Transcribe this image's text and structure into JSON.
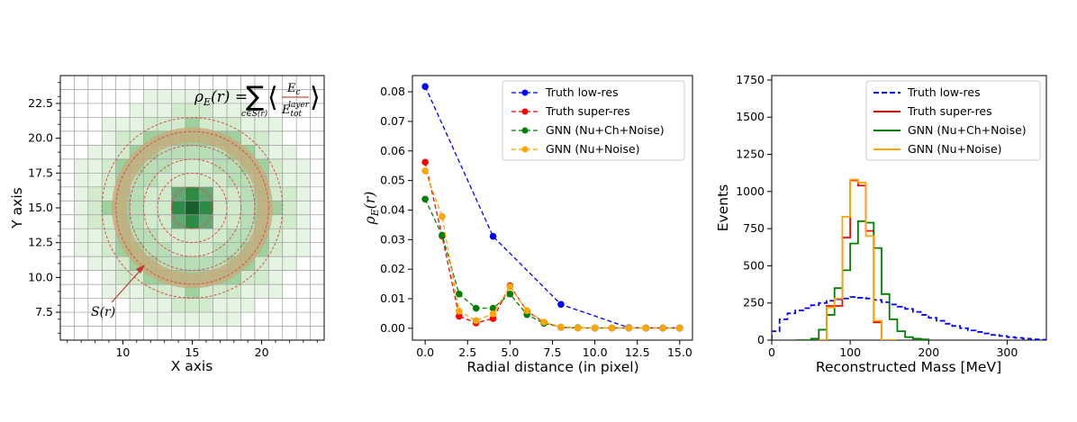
{
  "chart_data": [
    {
      "type": "heatmap",
      "xlabel": "X axis",
      "ylabel": "Y axis",
      "xlim": [
        5.5,
        24.5
      ],
      "ylim": [
        5.5,
        24.5
      ],
      "xticks": [
        "10",
        "15",
        "20"
      ],
      "yticks": [
        "7.5",
        "10.0",
        "12.5",
        "15.0",
        "17.5",
        "20.0",
        "22.5"
      ],
      "annotations": {
        "formula": "ρE(r) = Σ c∈S(r) ⟨ Ec / Etot layer ⟩",
        "formula_lhs": "ρ",
        "formula_lhs_sub": "E",
        "formula_lhs_arg": "(r) =",
        "formula_sum_index": "c∈S(r)",
        "formula_num": "E",
        "formula_num_sub": "c",
        "formula_den": "E",
        "formula_den_sub": "tot",
        "formula_den_sup": "layer",
        "ring_label": "S(r)"
      },
      "center": [
        15,
        15
      ],
      "ring_radii": [
        1.5,
        2.5,
        3.5,
        4.5,
        5.5,
        6.5
      ],
      "highlighted_annulus": [
        4.7,
        5.8
      ],
      "colors": {
        "core": "#1b5e30",
        "inner": "#2e8b46",
        "ring": "#7ec27e",
        "halo": "#c8e6c0",
        "annulus": "#c8a878",
        "circle": "#d9534f",
        "text": "#b22a12"
      }
    },
    {
      "type": "line",
      "xlabel": "Radial distance (in pixel)",
      "ylabel": "ρE(r)",
      "ylabel_symbol": "ρ",
      "ylabel_sub": "E",
      "ylabel_arg": "(r)",
      "xlim": [
        -0.75,
        15.75
      ],
      "ylim": [
        -0.004,
        0.0855
      ],
      "xticks": [
        "0.0",
        "2.5",
        "5.0",
        "7.5",
        "10.0",
        "12.5",
        "15.0"
      ],
      "yticks": [
        "0.00",
        "0.01",
        "0.02",
        "0.03",
        "0.04",
        "0.05",
        "0.06",
        "0.07",
        "0.08"
      ],
      "legend_position": "top-right",
      "series": [
        {
          "name": "Truth low-res",
          "color": "#0000ff",
          "x": [
            0,
            4,
            8,
            12,
            13,
            14,
            15
          ],
          "y": [
            0.0818,
            0.0311,
            0.0081,
            0.0002,
            0.0001,
            0.0001,
            0.0001
          ]
        },
        {
          "name": "Truth super-res",
          "color": "#ff0000",
          "x": [
            0,
            1,
            2,
            3,
            4,
            5,
            6,
            7,
            8,
            9,
            10,
            11,
            12,
            13,
            14,
            15
          ],
          "y": [
            0.0562,
            0.0312,
            0.0041,
            0.0018,
            0.0033,
            0.0144,
            0.0058,
            0.002,
            0.0003,
            0.0001,
            0.0001,
            0.0001,
            0.0001,
            0.0001,
            0.0001,
            0.0001
          ]
        },
        {
          "name": "GNN (Nu+Ch+Noise)",
          "color": "#008000",
          "x": [
            0,
            1,
            2,
            3,
            4,
            5,
            6,
            7,
            8,
            9,
            10,
            11,
            12,
            13,
            14,
            15
          ],
          "y": [
            0.0437,
            0.0315,
            0.0116,
            0.0068,
            0.0068,
            0.0116,
            0.0046,
            0.0017,
            0.0004,
            0.0002,
            0.0001,
            0.0001,
            0.0001,
            0.0001,
            0.0001,
            0.0001
          ]
        },
        {
          "name": "GNN (Nu+Noise)",
          "color": "#ffa500",
          "x": [
            0,
            1,
            2,
            3,
            4,
            5,
            6,
            7,
            8,
            9,
            10,
            11,
            12,
            13,
            14,
            15
          ],
          "y": [
            0.0533,
            0.0378,
            0.0058,
            0.0026,
            0.0049,
            0.0141,
            0.006,
            0.0021,
            0.0004,
            0.0001,
            0.0001,
            0.0001,
            0.0001,
            0.0001,
            0.0001,
            0.0001
          ]
        }
      ]
    },
    {
      "type": "histogram",
      "xlabel": "Reconstructed Mass [MeV]",
      "ylabel": "Events",
      "xlim": [
        0,
        350
      ],
      "ylim": [
        0,
        1780
      ],
      "xticks": [
        "0",
        "100",
        "200",
        "300"
      ],
      "yticks": [
        "0",
        "250",
        "500",
        "750",
        "1000",
        "1250",
        "1500",
        "1750"
      ],
      "legend_position": "top-right",
      "bin_width": 10,
      "series": [
        {
          "name": "Truth low-res",
          "color": "#0000ff",
          "style": "dashed",
          "bin_edges": [
            0,
            10,
            20,
            30,
            40,
            50,
            60,
            70,
            80,
            90,
            100,
            110,
            120,
            130,
            140,
            150,
            160,
            170,
            180,
            190,
            200,
            210,
            220,
            230,
            240,
            250,
            260,
            270,
            280,
            290,
            300,
            310,
            320,
            330,
            340,
            350
          ],
          "counts": [
            60,
            140,
            180,
            200,
            215,
            235,
            250,
            265,
            275,
            280,
            290,
            285,
            280,
            270,
            255,
            240,
            225,
            210,
            190,
            170,
            150,
            130,
            110,
            95,
            80,
            65,
            55,
            45,
            35,
            28,
            20,
            15,
            10,
            5,
            3
          ]
        },
        {
          "name": "Truth super-res",
          "color": "#ff0000",
          "bin_edges": [
            60,
            70,
            80,
            90,
            100,
            110,
            120,
            130,
            140,
            150,
            160
          ],
          "counts": [
            0,
            230,
            230,
            690,
            1075,
            1040,
            735,
            120,
            0,
            0
          ]
        },
        {
          "name": "GNN (Nu+Ch+Noise)",
          "color": "#008000",
          "bin_edges": [
            30,
            40,
            50,
            60,
            70,
            80,
            90,
            100,
            110,
            120,
            130,
            140,
            150,
            160,
            170,
            180,
            190,
            200
          ],
          "counts": [
            0,
            0,
            10,
            70,
            170,
            350,
            470,
            650,
            800,
            790,
            620,
            310,
            140,
            60,
            20,
            10,
            5
          ]
        },
        {
          "name": "GNN (Nu+Noise)",
          "color": "#ffa500",
          "bin_edges": [
            60,
            70,
            80,
            90,
            100,
            110,
            120,
            130,
            140,
            150,
            160
          ],
          "counts": [
            0,
            220,
            280,
            830,
            1080,
            1060,
            700,
            130,
            0,
            0
          ]
        }
      ]
    }
  ]
}
